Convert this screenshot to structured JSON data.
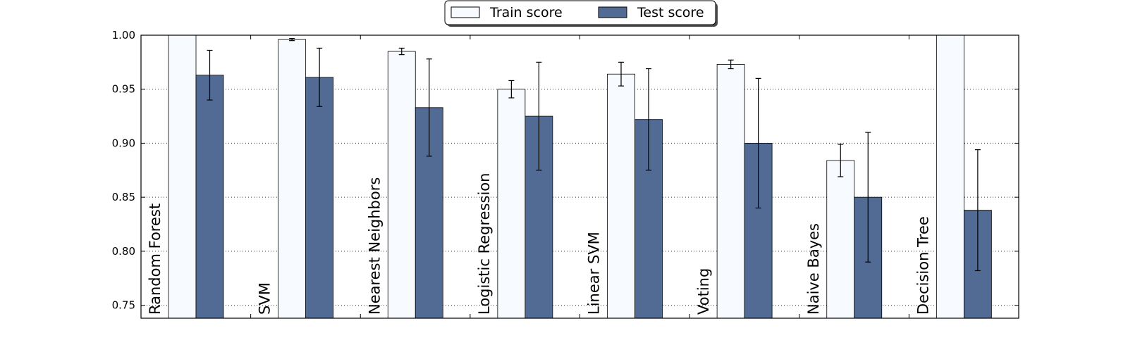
{
  "chart_data": {
    "type": "bar",
    "categories": [
      "Random Forest",
      "SVM",
      "Nearest Neighbors",
      "Logistic Regression",
      "Linear SVM",
      "Voting",
      "Naive Bayes",
      "Decision Tree"
    ],
    "series": [
      {
        "name": "Train score",
        "color": "#f7fbff",
        "values": [
          1.0,
          0.996,
          0.985,
          0.95,
          0.964,
          0.973,
          0.884,
          1.0
        ],
        "errors": [
          0.0,
          0.001,
          0.003,
          0.008,
          0.011,
          0.004,
          0.015,
          0.0
        ]
      },
      {
        "name": "Test score",
        "color": "#516b94",
        "values": [
          0.963,
          0.961,
          0.933,
          0.925,
          0.922,
          0.9,
          0.85,
          0.838
        ],
        "errors": [
          0.023,
          0.027,
          0.045,
          0.05,
          0.047,
          0.06,
          0.06,
          0.056
        ]
      }
    ],
    "yticks": [
      "0.75",
      "0.80",
      "0.85",
      "0.90",
      "0.95",
      "1.00"
    ],
    "ylim": [
      0.738,
      1.0
    ],
    "grid": "horizontal dotted",
    "legend_position": "top-center",
    "title": "",
    "xlabel": "",
    "ylabel": ""
  }
}
